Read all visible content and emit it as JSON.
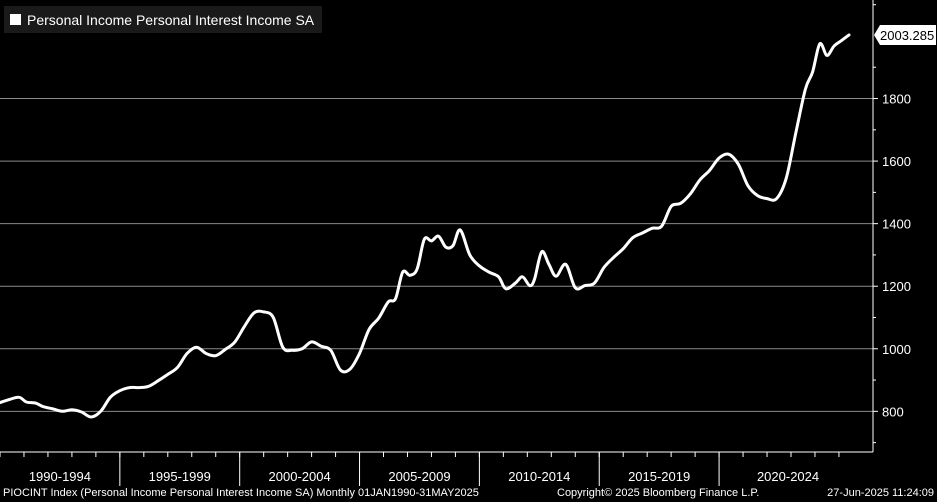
{
  "legend": {
    "label": "Personal Income Personal Interest Income SA"
  },
  "footer": {
    "left": "PIOCINT Index (Personal Income Personal Interest Income SA)  Monthly 01JAN1990-31MAY2025",
    "middle": "Copyright© 2025 Bloomberg Finance L.P.",
    "right": "27-Jun-2025 11:24:09"
  },
  "colors": {
    "background": "#000000",
    "line": "#ffffff",
    "grid": "#8a8a8a",
    "legend_bg": "#1a1a1a"
  },
  "chart_data": {
    "type": "line",
    "title": "",
    "xlabel": "",
    "ylabel": "",
    "xlim": [
      1990.0,
      2025.42
    ],
    "ylim": [
      670,
      2115
    ],
    "y_ticks": [
      800,
      1000,
      1200,
      1400,
      1600,
      1800
    ],
    "x_tick_labels": [
      "1990-1994",
      "1995-1999",
      "2000-2004",
      "2005-2009",
      "2010-2014",
      "2015-2019",
      "2020-2024"
    ],
    "x_tick_starts": [
      1990,
      1995,
      2000,
      2005,
      2010,
      2015,
      2020
    ],
    "last_value_label": "2003.285",
    "grid": true,
    "series": [
      {
        "name": "Personal Income Personal Interest Income SA",
        "x": [
          1990.0,
          1990.4,
          1990.8,
          1991.1,
          1991.5,
          1991.8,
          1992.2,
          1992.6,
          1993.0,
          1993.4,
          1993.8,
          1994.2,
          1994.6,
          1995.0,
          1995.4,
          1995.8,
          1996.2,
          1996.6,
          1997.0,
          1997.4,
          1997.8,
          1998.2,
          1998.6,
          1999.0,
          1999.4,
          1999.8,
          2000.2,
          2000.6,
          2001.0,
          2001.4,
          2001.8,
          2002.2,
          2002.6,
          2003.0,
          2003.4,
          2003.8,
          2004.2,
          2004.6,
          2005.0,
          2005.4,
          2005.8,
          2006.2,
          2006.5,
          2006.8,
          2007.1,
          2007.4,
          2007.7,
          2008.0,
          2008.3,
          2008.6,
          2008.9,
          2009.2,
          2009.6,
          2010.0,
          2010.4,
          2010.8,
          2011.1,
          2011.5,
          2011.8,
          2012.1,
          2012.3,
          2012.6,
          2012.9,
          2013.2,
          2013.6,
          2014.0,
          2014.4,
          2014.8,
          2015.2,
          2015.6,
          2016.0,
          2016.4,
          2016.8,
          2017.2,
          2017.6,
          2018.0,
          2018.4,
          2018.8,
          2019.2,
          2019.6,
          2020.0,
          2020.4,
          2020.8,
          2021.2,
          2021.6,
          2022.0,
          2022.4,
          2022.8,
          2023.2,
          2023.6,
          2023.9,
          2024.2,
          2024.5,
          2024.8,
          2025.1,
          2025.42
        ],
        "y": [
          828,
          838,
          845,
          830,
          826,
          815,
          808,
          800,
          805,
          798,
          782,
          800,
          845,
          866,
          876,
          876,
          880,
          898,
          918,
          940,
          985,
          1005,
          985,
          978,
          998,
          1022,
          1072,
          1115,
          1118,
          1100,
          1005,
          995,
          1000,
          1022,
          1008,
          995,
          932,
          935,
          985,
          1062,
          1098,
          1150,
          1160,
          1245,
          1235,
          1255,
          1350,
          1345,
          1360,
          1325,
          1330,
          1380,
          1300,
          1265,
          1245,
          1230,
          1192,
          1210,
          1230,
          1202,
          1222,
          1310,
          1270,
          1232,
          1270,
          1195,
          1202,
          1210,
          1260,
          1292,
          1320,
          1355,
          1370,
          1385,
          1392,
          1455,
          1465,
          1495,
          1540,
          1570,
          1610,
          1622,
          1590,
          1522,
          1490,
          1480,
          1480,
          1545,
          1690,
          1830,
          1885,
          1975,
          1938,
          1968,
          1985,
          2003.285
        ]
      }
    ]
  }
}
